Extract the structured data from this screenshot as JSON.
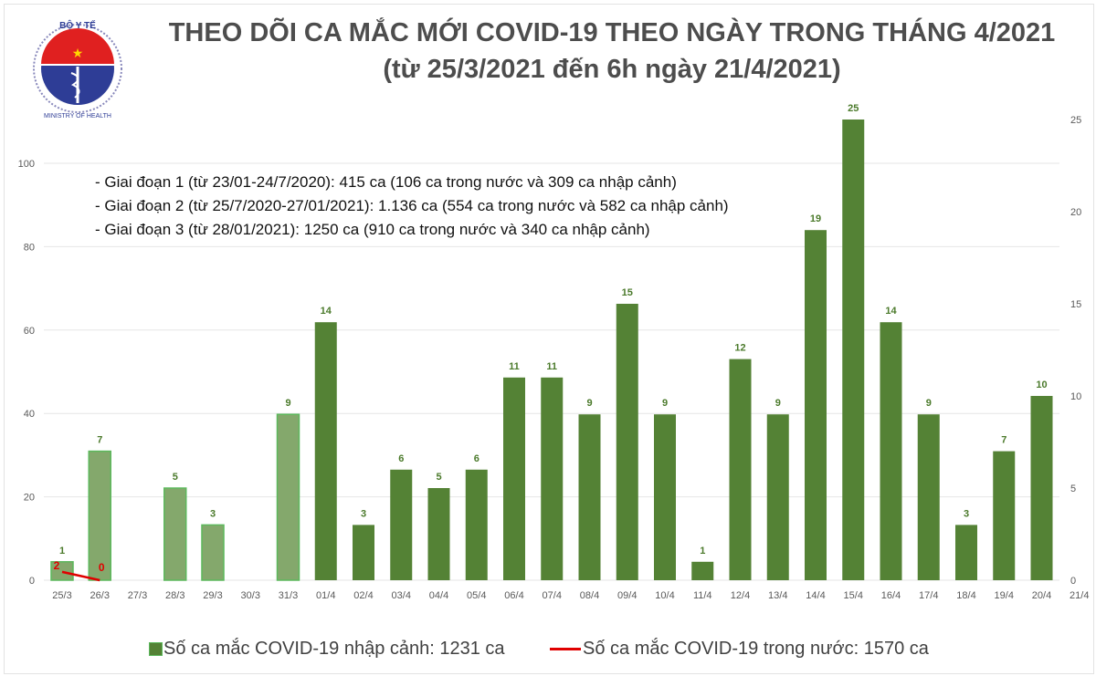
{
  "logo": {
    "top_text": "BỘ Y TẾ",
    "bottom_text": "MINISTRY OF HEALTH"
  },
  "chart_data": {
    "type": "bar",
    "title": "THEO DÕI CA MẮC MỚI COVID-19 THEO NGÀY TRONG THÁNG 4/2021",
    "subtitle": "(từ 25/3/2021 đến 6h ngày 21/4/2021)",
    "categories": [
      "25/3",
      "26/3",
      "27/3",
      "28/3",
      "29/3",
      "30/3",
      "31/3",
      "01/4",
      "02/4",
      "03/4",
      "04/4",
      "05/4",
      "06/4",
      "07/4",
      "08/4",
      "09/4",
      "10/4",
      "11/4",
      "12/4",
      "13/4",
      "14/4",
      "15/4",
      "16/4",
      "17/4",
      "18/4",
      "19/4",
      "20/4",
      "21/4"
    ],
    "series": [
      {
        "name": "Số ca mắc COVID-19 nhập cảnh: 1231 ca",
        "type": "bar",
        "axis": "right",
        "color": "#548235",
        "color_light": "#84a86c",
        "values": [
          1,
          7,
          null,
          5,
          3,
          null,
          9,
          14,
          3,
          6,
          5,
          6,
          11,
          11,
          9,
          15,
          9,
          1,
          12,
          9,
          19,
          25,
          14,
          9,
          3,
          7,
          10,
          null
        ]
      },
      {
        "name": "Số ca mắc COVID-19 trong nước: 1570 ca",
        "type": "line",
        "axis": "left",
        "color": "#e00000",
        "x": [
          "25/3",
          "26/3"
        ],
        "values": [
          2,
          0
        ]
      }
    ],
    "ylim_left": [
      0,
      110
    ],
    "yticks_left": [
      0,
      20,
      40,
      60,
      80,
      100
    ],
    "ylim_right": [
      0,
      25
    ],
    "yticks_right": [
      0,
      5,
      10,
      15,
      20,
      25
    ],
    "grid": true,
    "legend": "bottom",
    "annotations": [
      "- Giai đoạn 1 (từ 23/01-24/7/2020): 415 ca (106 ca trong nước và 309 ca nhập cảnh)",
      "- Giai đoạn 2 (từ 25/7/2020-27/01/2021): 1.136 ca (554 ca trong nước và 582 ca nhập cảnh)",
      "- Giai đoạn 3 (từ 28/01/2021): 1250 ca (910 ca trong nước và 340 ca nhập cảnh)"
    ]
  }
}
